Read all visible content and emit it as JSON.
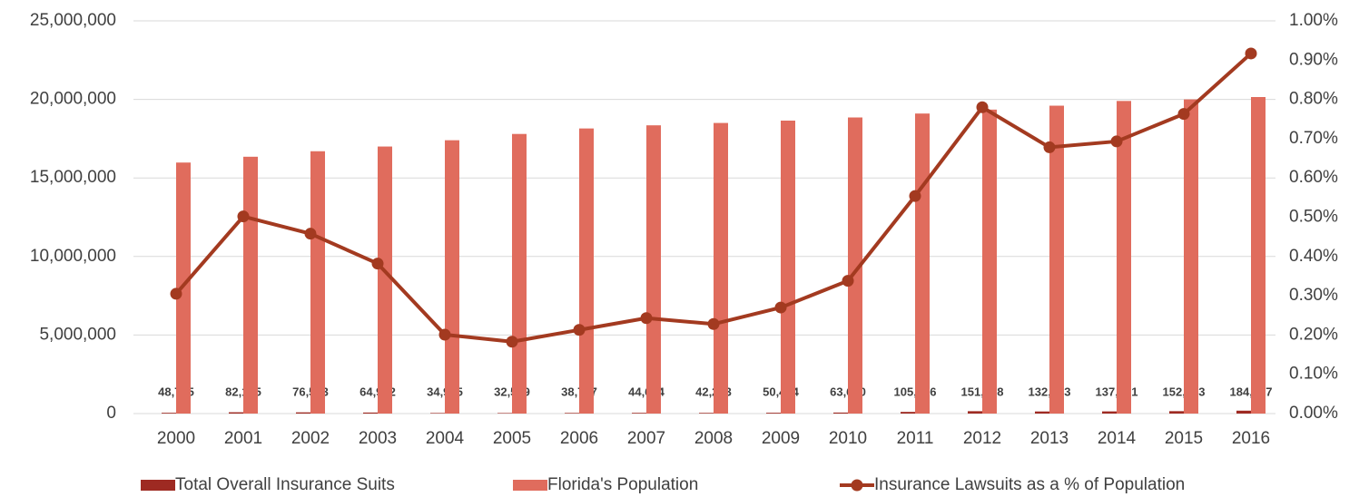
{
  "chart_data": {
    "type": "bar",
    "categories": [
      "2000",
      "2001",
      "2002",
      "2003",
      "2004",
      "2005",
      "2006",
      "2007",
      "2008",
      "2009",
      "2010",
      "2011",
      "2012",
      "2013",
      "2014",
      "2015",
      "2016"
    ],
    "series": [
      {
        "name": "Total Overall Insurance Suits",
        "type": "bar",
        "color": "#9e2a22",
        "values": [
          48705,
          82145,
          76563,
          64912,
          34995,
          32589,
          38747,
          44654,
          42223,
          50414,
          63650,
          105866,
          151008,
          132863,
          137851,
          152553,
          184857
        ],
        "value_labels": [
          "48,705",
          "82,145",
          "76,563",
          "64,912",
          "34,995",
          "32,589",
          "38,747",
          "44,654",
          "42,223",
          "50,414",
          "63,650",
          "105,866",
          "151,008",
          "132,863",
          "137,851",
          "152,553",
          "184,857"
        ]
      },
      {
        "name": "Florida's Population",
        "type": "bar",
        "color": "#e06c5d",
        "values": [
          15980000,
          16350000,
          16700000,
          17000000,
          17400000,
          17800000,
          18150000,
          18350000,
          18500000,
          18650000,
          18850000,
          19100000,
          19350000,
          19600000,
          19900000,
          20000000,
          20150000
        ]
      },
      {
        "name": "Insurance Lawsuits as a % of Population",
        "type": "line",
        "axis": "y2",
        "color": "#a33a20",
        "values": [
          0.305,
          0.502,
          0.458,
          0.382,
          0.201,
          0.183,
          0.213,
          0.243,
          0.228,
          0.27,
          0.338,
          0.554,
          0.78,
          0.678,
          0.693,
          0.763,
          0.917
        ]
      }
    ],
    "ylim": [
      0,
      25000000
    ],
    "yticks": [
      0,
      {
        "value": 5000000,
        "label": "5,000,000"
      },
      {
        "value": 10000000,
        "label": "10,000,000"
      },
      {
        "value": 15000000,
        "label": "15,000,000"
      },
      {
        "value": 20000000,
        "label": "20,000,000"
      },
      {
        "value": 25000000,
        "label": "25,000,000"
      }
    ],
    "y2lim": [
      0,
      1
    ],
    "y2ticks": [
      {
        "value": 0,
        "label": "0.00%"
      },
      {
        "value": 0.1,
        "label": "0.10%"
      },
      {
        "value": 0.2,
        "label": "0.20%"
      },
      {
        "value": 0.3,
        "label": "0.30%"
      },
      {
        "value": 0.4,
        "label": "0.40%"
      },
      {
        "value": 0.5,
        "label": "0.50%"
      },
      {
        "value": 0.6,
        "label": "0.60%"
      },
      {
        "value": 0.7,
        "label": "0.70%"
      },
      {
        "value": 0.8,
        "label": "0.80%"
      },
      {
        "value": 0.9,
        "label": "0.90%"
      },
      {
        "value": 1,
        "label": "1.00%"
      }
    ],
    "grid": true,
    "legend": "bottom"
  }
}
